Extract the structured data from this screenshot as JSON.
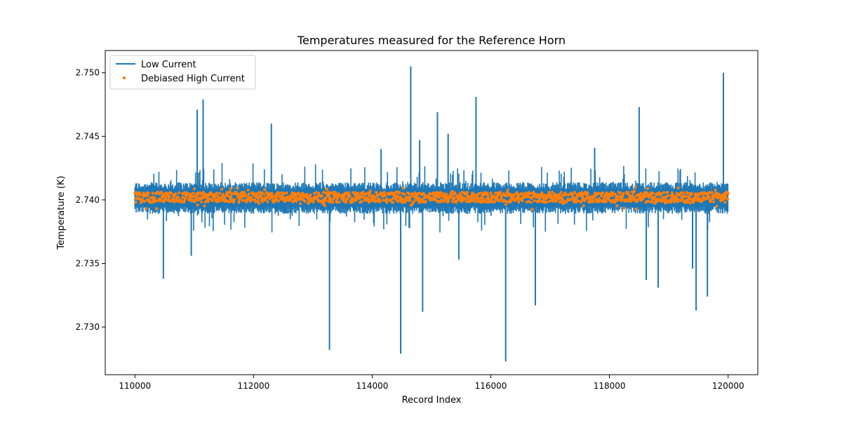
{
  "chart_data": {
    "type": "line",
    "title": "Temperatures measured for the Reference Horn",
    "xlabel": "Record Index",
    "ylabel": "Temperature (K)",
    "xlim": [
      109500,
      120500
    ],
    "ylim": [
      2.72625,
      2.75175
    ],
    "xticks": [
      110000,
      112000,
      114000,
      116000,
      118000,
      120000
    ],
    "xtick_labels": [
      "110000",
      "112000",
      "114000",
      "116000",
      "118000",
      "120000"
    ],
    "yticks": [
      2.73,
      2.735,
      2.74,
      2.745,
      2.75
    ],
    "ytick_labels": [
      "2.730",
      "2.735",
      "2.740",
      "2.745",
      "2.750"
    ],
    "grid": false,
    "legend_position": "upper-left",
    "legend_entries": [
      "Low Current",
      "Debiased High Current"
    ],
    "series": [
      {
        "name": "Low Current",
        "kind": "line",
        "color": "#1f77b4",
        "baseline": 2.7402,
        "band_low": 2.7392,
        "band_high": 2.7411,
        "spikes": [
          {
            "x": 110480,
            "y": 2.7338
          },
          {
            "x": 110950,
            "y": 2.7356
          },
          {
            "x": 111050,
            "y": 2.7471
          },
          {
            "x": 111150,
            "y": 2.7479
          },
          {
            "x": 112300,
            "y": 2.746
          },
          {
            "x": 113280,
            "y": 2.7282
          },
          {
            "x": 114150,
            "y": 2.744
          },
          {
            "x": 114480,
            "y": 2.7279
          },
          {
            "x": 114650,
            "y": 2.7505
          },
          {
            "x": 114800,
            "y": 2.7447
          },
          {
            "x": 114850,
            "y": 2.7312
          },
          {
            "x": 115100,
            "y": 2.7469
          },
          {
            "x": 115280,
            "y": 2.7452
          },
          {
            "x": 115460,
            "y": 2.7353
          },
          {
            "x": 115750,
            "y": 2.7481
          },
          {
            "x": 116250,
            "y": 2.7273
          },
          {
            "x": 116750,
            "y": 2.7317
          },
          {
            "x": 117750,
            "y": 2.7441
          },
          {
            "x": 118500,
            "y": 2.7473
          },
          {
            "x": 118620,
            "y": 2.7337
          },
          {
            "x": 118820,
            "y": 2.7331
          },
          {
            "x": 119400,
            "y": 2.7346
          },
          {
            "x": 119460,
            "y": 2.7313
          },
          {
            "x": 119650,
            "y": 2.7324
          },
          {
            "x": 119920,
            "y": 2.75
          }
        ]
      },
      {
        "name": "Debiased High Current",
        "kind": "scatter",
        "color": "#ff7f0e",
        "baseline": 2.7402,
        "band_low": 2.7398,
        "band_high": 2.7406
      }
    ]
  }
}
